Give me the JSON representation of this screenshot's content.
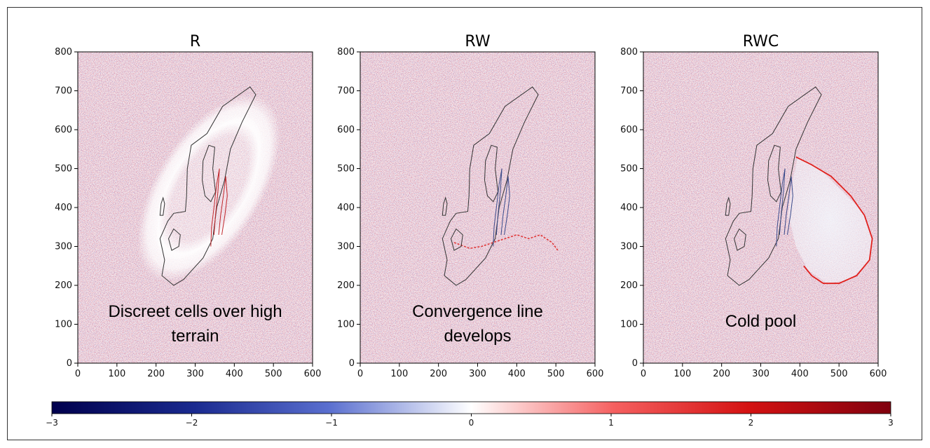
{
  "chart_data": {
    "type": "heatmap",
    "panels": [
      {
        "title": "R",
        "annotation_lines": [
          "Discreet cells over high",
          "terrain"
        ],
        "xlim": [
          0,
          600
        ],
        "ylim": [
          0,
          800
        ],
        "xticks": [
          0,
          100,
          200,
          300,
          400,
          500,
          600
        ],
        "yticks": [
          0,
          100,
          200,
          300,
          400,
          500,
          600,
          700,
          800
        ],
        "feature": "white halo ring around terrain contour; small red cells over high terrain"
      },
      {
        "title": "RW",
        "annotation_lines": [
          "Convergence line",
          "develops"
        ],
        "xlim": [
          0,
          600
        ],
        "ylim": [
          0,
          800
        ],
        "xticks": [
          0,
          100,
          200,
          300,
          400,
          500,
          600
        ],
        "yticks": [
          0,
          100,
          200,
          300,
          400,
          500,
          600,
          700,
          800
        ],
        "feature": "red convergence line along southern and eastern flank"
      },
      {
        "title": "RWC",
        "annotation_lines": [
          "Cold pool"
        ],
        "xlim": [
          0,
          600
        ],
        "ylim": [
          0,
          800
        ],
        "xticks": [
          0,
          100,
          200,
          300,
          400,
          500,
          600
        ],
        "yticks": [
          0,
          100,
          200,
          300,
          400,
          500,
          600,
          700,
          800
        ],
        "feature": "red arc bounding a bluish cold pool to the east"
      }
    ],
    "colorbar": {
      "range": [
        -3,
        3
      ],
      "ticks": [
        -3,
        -2,
        -1,
        0,
        1,
        2,
        3
      ],
      "tick_labels": [
        "−3",
        "−2",
        "−1",
        "0",
        "1",
        "2",
        "3"
      ],
      "colormap": "seismic",
      "orientation": "horizontal",
      "colors": {
        "low": "#00004d",
        "mid": "#ffffff",
        "high": "#80000e"
      }
    }
  }
}
